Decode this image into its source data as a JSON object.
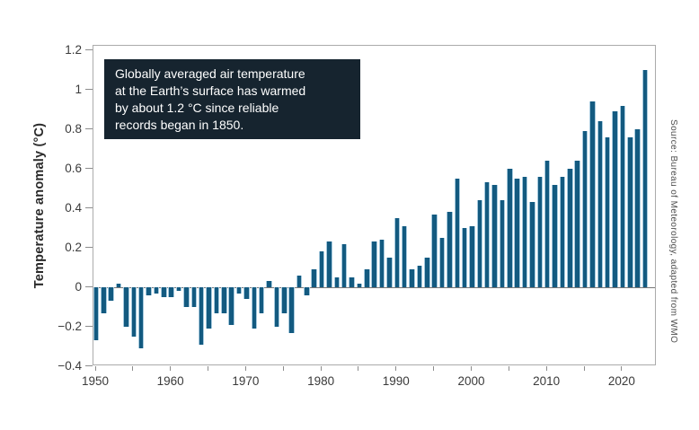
{
  "figure": {
    "background": "#ffffff",
    "bar_color": "#135A80",
    "bar_edge_color": "#A6CADE",
    "plot_border_color": "#ABABAB",
    "zero_line_color": "#767676",
    "tick_color": "#8C8C8C",
    "label_color": "#3A3A3A",
    "annotation_bg": "#16242F",
    "annotation_text_color": "#FFFFFF",
    "source_text_color": "#4F4F4F"
  },
  "annotation": {
    "text": "Globally averaged air temperature\nat the Earth’s surface has warmed\nby about 1.2 °C since reliable\nrecords began in 1850."
  },
  "source": {
    "text": "Source: Bureau of Meteorology, adapted from WMO"
  },
  "chart_data": {
    "type": "bar",
    "title": "",
    "xlabel": "",
    "ylabel": "Temperature anomaly (°C)",
    "ylim": [
      -0.4,
      1.225
    ],
    "grid": false,
    "legend": "none",
    "x_tick_labels": [
      "1950",
      "1960",
      "1970",
      "1980",
      "1990",
      "2000",
      "2010",
      "2020"
    ],
    "x_minor_tick_step_years": 5,
    "y_tick_labels": [
      "−0.4",
      "−0.2",
      "0",
      "0.2",
      "0.4",
      "0.6",
      "0.8",
      "1",
      "1.2"
    ],
    "y_tick_values": [
      -0.4,
      -0.2,
      0,
      0.2,
      0.4,
      0.6,
      0.8,
      1,
      1.2
    ],
    "years": [
      1950,
      1951,
      1952,
      1953,
      1954,
      1955,
      1956,
      1957,
      1958,
      1959,
      1960,
      1961,
      1962,
      1963,
      1964,
      1965,
      1966,
      1967,
      1968,
      1969,
      1970,
      1971,
      1972,
      1973,
      1974,
      1975,
      1976,
      1977,
      1978,
      1979,
      1980,
      1981,
      1982,
      1983,
      1984,
      1985,
      1986,
      1987,
      1988,
      1989,
      1990,
      1991,
      1992,
      1993,
      1994,
      1995,
      1996,
      1997,
      1998,
      1999,
      2000,
      2001,
      2002,
      2003,
      2004,
      2005,
      2006,
      2007,
      2008,
      2009,
      2010,
      2011,
      2012,
      2013,
      2014,
      2015,
      2016,
      2017,
      2018,
      2019,
      2020,
      2021,
      2022,
      2023
    ],
    "values": [
      -0.27,
      -0.13,
      -0.07,
      0.02,
      -0.2,
      -0.25,
      -0.31,
      -0.04,
      -0.03,
      -0.05,
      -0.05,
      -0.02,
      -0.1,
      -0.1,
      -0.29,
      -0.21,
      -0.13,
      -0.13,
      -0.19,
      -0.03,
      -0.06,
      -0.21,
      -0.13,
      0.03,
      -0.2,
      -0.13,
      -0.23,
      0.06,
      -0.04,
      0.09,
      0.18,
      0.23,
      0.05,
      0.22,
      0.05,
      0.02,
      0.09,
      0.23,
      0.24,
      0.15,
      0.35,
      0.31,
      0.09,
      0.11,
      0.15,
      0.37,
      0.25,
      0.38,
      0.55,
      0.3,
      0.31,
      0.44,
      0.53,
      0.52,
      0.44,
      0.6,
      0.55,
      0.56,
      0.43,
      0.56,
      0.64,
      0.52,
      0.56,
      0.6,
      0.64,
      0.79,
      0.94,
      0.84,
      0.76,
      0.89,
      0.92,
      0.76,
      0.8,
      1.1
    ]
  }
}
